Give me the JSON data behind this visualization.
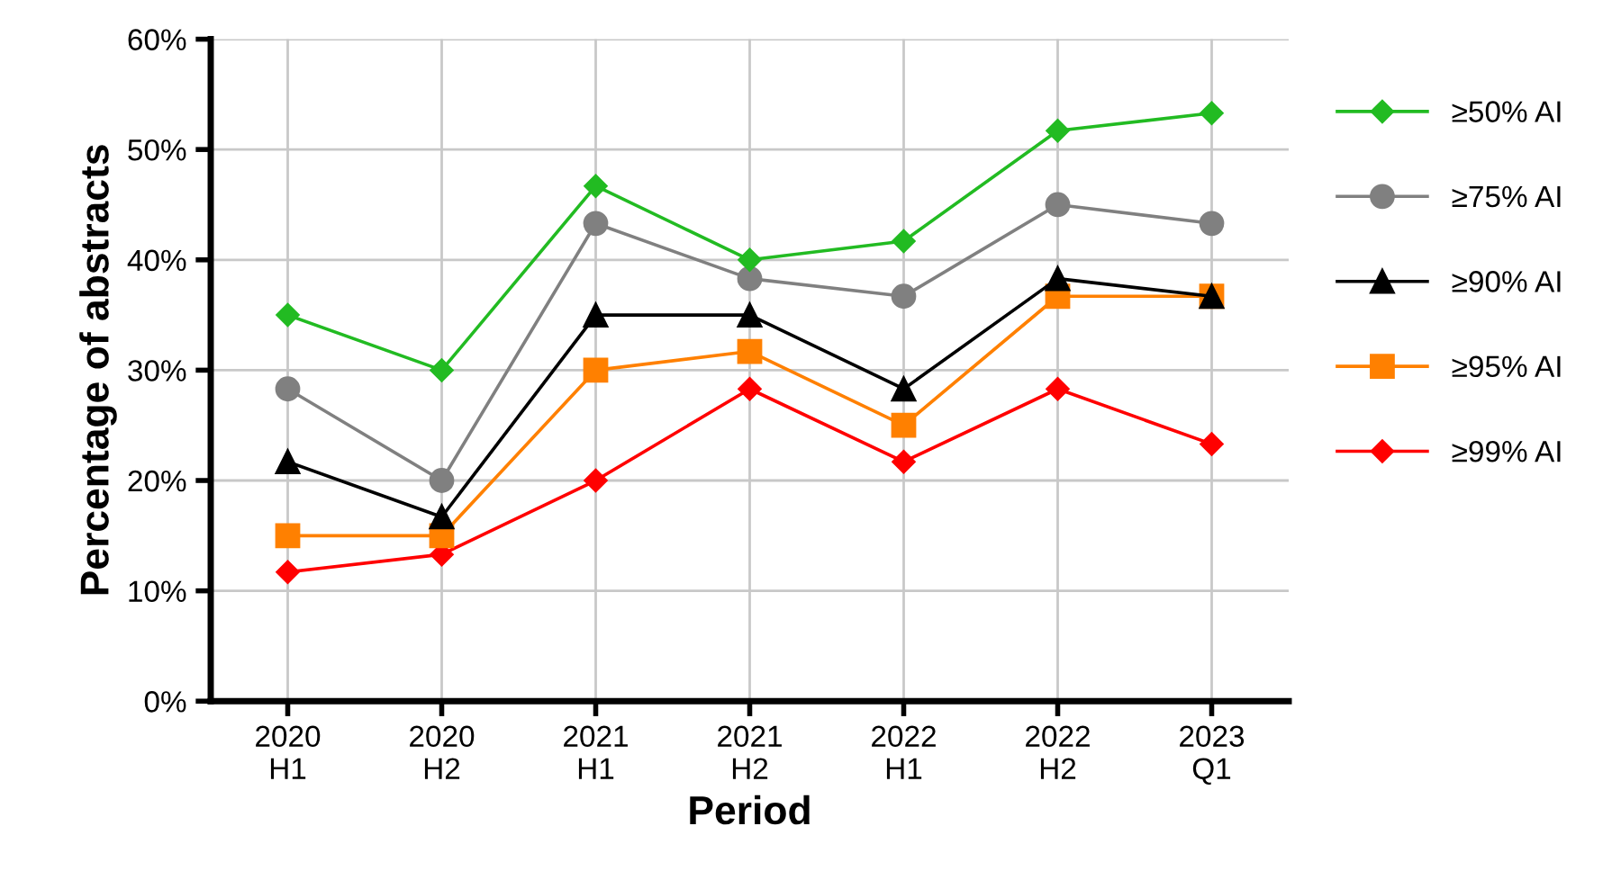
{
  "chart_data": {
    "type": "line",
    "xlabel": "Period",
    "ylabel": "Percentage of abstracts",
    "categories": [
      "2020\nH1",
      "2020\nH2",
      "2021\nH1",
      "2021\nH2",
      "2022\nH1",
      "2022\nH2",
      "2023\nQ1"
    ],
    "ylim": [
      0,
      60
    ],
    "yticks": [
      {
        "value": 0,
        "label": "0%"
      },
      {
        "value": 10,
        "label": "10%"
      },
      {
        "value": 20,
        "label": "20%"
      },
      {
        "value": 30,
        "label": "30%"
      },
      {
        "value": 40,
        "label": "40%"
      },
      {
        "value": 50,
        "label": "50%"
      },
      {
        "value": 60,
        "label": "60%"
      }
    ],
    "grid": true,
    "legend": "right",
    "line_style": "solid",
    "series": [
      {
        "name": "≥50% AI",
        "color": "#22bb22",
        "marker": "diamond",
        "values": [
          35,
          30,
          46.7,
          40,
          41.7,
          51.7,
          53.3
        ]
      },
      {
        "name": "≥75% AI",
        "color": "#808080",
        "marker": "circle",
        "values": [
          28.3,
          20,
          43.3,
          38.3,
          36.7,
          45,
          43.3
        ]
      },
      {
        "name": "≥90% AI",
        "color": "#000000",
        "marker": "triangle",
        "values": [
          21.7,
          16.7,
          35,
          35,
          28.3,
          38.3,
          36.7
        ]
      },
      {
        "name": "≥95% AI",
        "color": "#ff8000",
        "marker": "square",
        "values": [
          15,
          15,
          30,
          31.7,
          25,
          36.7,
          36.7
        ]
      },
      {
        "name": "≥99% AI",
        "color": "#ff0000",
        "marker": "diamond",
        "values": [
          11.7,
          13.3,
          20,
          28.3,
          21.7,
          28.3,
          23.3
        ]
      }
    ]
  }
}
